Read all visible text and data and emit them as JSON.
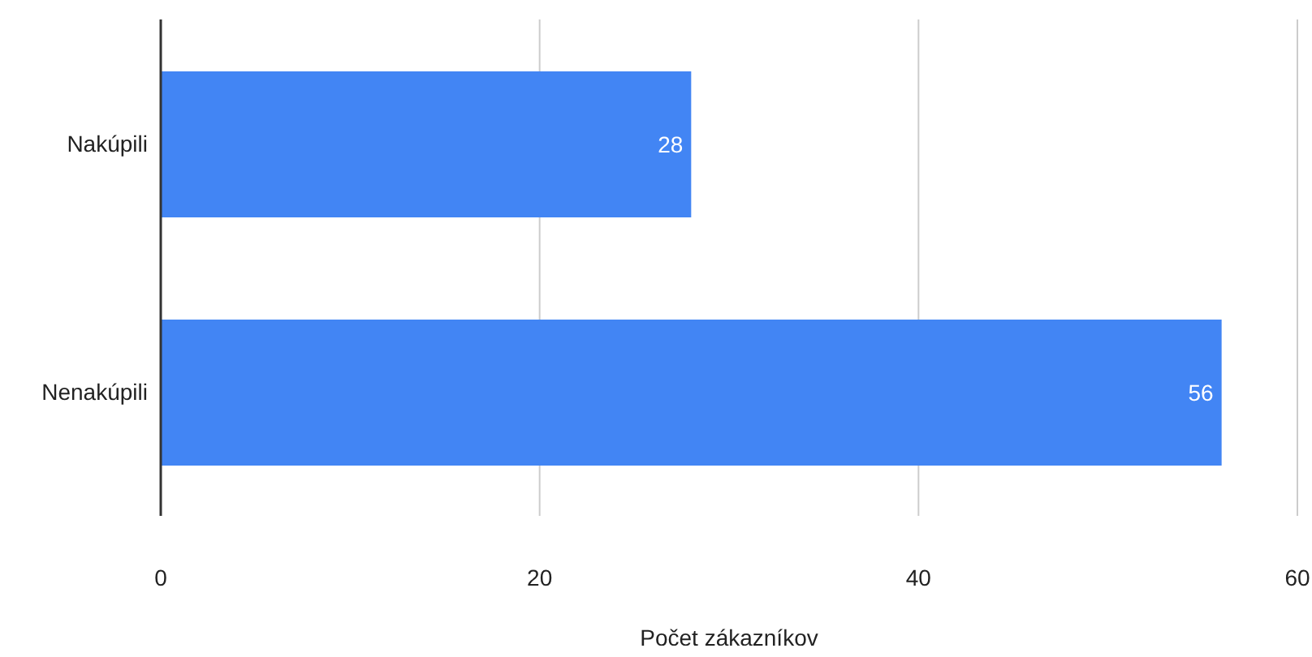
{
  "chart_data": {
    "type": "bar",
    "orientation": "horizontal",
    "categories": [
      "Nakúpili",
      "Nenakúpili"
    ],
    "values": [
      28,
      56
    ],
    "color": "#4285f4",
    "xlabel": "Počet zákazníkov",
    "xlim": [
      0,
      60
    ],
    "xticks": [
      0,
      20,
      40,
      60
    ],
    "grid": "x",
    "data_labels": true
  }
}
